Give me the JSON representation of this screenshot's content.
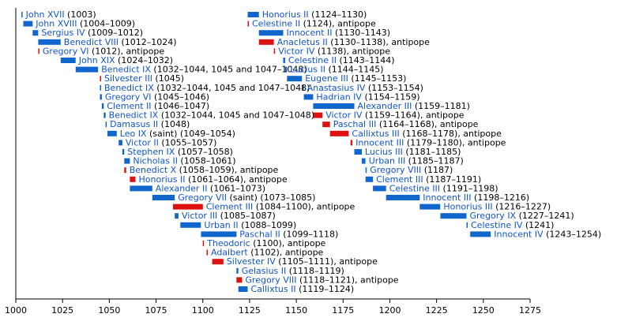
{
  "chart_data": {
    "type": "timeline",
    "x_axis": {
      "min": 1000,
      "max": 1275,
      "ticks": [
        1000,
        1025,
        1050,
        1075,
        1100,
        1125,
        1150,
        1175,
        1200,
        1225,
        1250,
        1275
      ]
    },
    "colors": {
      "pope": "#1166cc",
      "antipope": "#dd1111",
      "name_text": "#1155cc",
      "axis": "#000000"
    },
    "grid": false,
    "series": [
      {
        "name": "John XVII",
        "years_text": "(1003)",
        "start": 1003,
        "end": 1003.4,
        "kind": "pope"
      },
      {
        "name": "John XVIII",
        "years_text": "(1004–1009)",
        "start": 1004,
        "end": 1009,
        "kind": "pope"
      },
      {
        "name": "Sergius IV",
        "years_text": "(1009–1012)",
        "start": 1009,
        "end": 1012,
        "kind": "pope"
      },
      {
        "name": "Benedict VIII",
        "years_text": "(1012–1024)",
        "start": 1012,
        "end": 1024,
        "kind": "pope"
      },
      {
        "name": "Gregory VI",
        "years_text": "(1012), antipope",
        "start": 1012,
        "end": 1012.4,
        "kind": "antipope"
      },
      {
        "name": "John XIX",
        "years_text": "(1024–1032)",
        "start": 1024,
        "end": 1032,
        "kind": "pope"
      },
      {
        "name": "Benedict IX",
        "years_text": "(1032–1044, 1045 and 1047–1048)",
        "start": 1032,
        "end": 1044,
        "kind": "pope"
      },
      {
        "name": "Silvester III",
        "years_text": "(1045)",
        "start": 1045,
        "end": 1045.4,
        "kind": "antipope"
      },
      {
        "name": "Benedict IX",
        "years_text": "(1032–1044, 1045 and 1047–1048)",
        "start": 1045,
        "end": 1045.4,
        "kind": "pope"
      },
      {
        "name": "Gregory VI",
        "years_text": "(1045–1046)",
        "start": 1045,
        "end": 1046,
        "kind": "pope"
      },
      {
        "name": "Clement II",
        "years_text": "(1046–1047)",
        "start": 1046,
        "end": 1047,
        "kind": "pope"
      },
      {
        "name": "Benedict IX",
        "years_text": "(1032–1044, 1045 and 1047–1048)",
        "start": 1047,
        "end": 1048,
        "kind": "pope"
      },
      {
        "name": "Damasus II",
        "years_text": "(1048)",
        "start": 1048,
        "end": 1048.4,
        "kind": "pope"
      },
      {
        "name": "Leo IX",
        "years_text": "(saint) (1049–1054)",
        "start": 1049,
        "end": 1054,
        "kind": "pope"
      },
      {
        "name": "Victor II",
        "years_text": "(1055–1057)",
        "start": 1055,
        "end": 1057,
        "kind": "pope"
      },
      {
        "name": "Stephen IX",
        "years_text": "(1057–1058)",
        "start": 1057,
        "end": 1058,
        "kind": "pope"
      },
      {
        "name": "Nicholas II",
        "years_text": "(1058–1061)",
        "start": 1058,
        "end": 1061,
        "kind": "pope"
      },
      {
        "name": "Benedict X",
        "years_text": "(1058–1059), antipope",
        "start": 1058,
        "end": 1059,
        "kind": "antipope"
      },
      {
        "name": "Honorius II",
        "years_text": "(1061–1064), antipope",
        "start": 1061,
        "end": 1064,
        "kind": "antipope"
      },
      {
        "name": "Alexander II",
        "years_text": "(1061–1073)",
        "start": 1061,
        "end": 1073,
        "kind": "pope"
      },
      {
        "name": "Gregory VII",
        "years_text": "(saint) (1073–1085)",
        "start": 1073,
        "end": 1085,
        "kind": "pope"
      },
      {
        "name": "Clement III",
        "years_text": "(1084–1100), antipope",
        "start": 1084,
        "end": 1100,
        "kind": "antipope"
      },
      {
        "name": "Victor III",
        "years_text": "(1085–1087)",
        "start": 1085,
        "end": 1087,
        "kind": "pope"
      },
      {
        "name": "Urban II",
        "years_text": "(1088–1099)",
        "start": 1088,
        "end": 1099,
        "kind": "pope"
      },
      {
        "name": "Paschal II",
        "years_text": "(1099–1118)",
        "start": 1099,
        "end": 1118,
        "kind": "pope"
      },
      {
        "name": "Theodoric",
        "years_text": "(1100), antipope",
        "start": 1100,
        "end": 1100.4,
        "kind": "antipope"
      },
      {
        "name": "Adalbert",
        "years_text": "(1102), antipope",
        "start": 1102,
        "end": 1102.4,
        "kind": "antipope"
      },
      {
        "name": "Silvester IV",
        "years_text": "(1105–1111), antipope",
        "start": 1105,
        "end": 1111,
        "kind": "antipope"
      },
      {
        "name": "Gelasius II",
        "years_text": "(1118–1119)",
        "start": 1118,
        "end": 1119,
        "kind": "pope"
      },
      {
        "name": "Gregory VIII",
        "years_text": "(1118–1121), antipope",
        "start": 1118,
        "end": 1121,
        "kind": "antipope"
      },
      {
        "name": "Callixtus II",
        "years_text": "(1119–1124)",
        "start": 1119,
        "end": 1124,
        "kind": "pope"
      },
      {
        "name": "Honorius II",
        "years_text": "(1124–1130)",
        "start": 1124,
        "end": 1130,
        "kind": "pope"
      },
      {
        "name": "Celestine II",
        "years_text": "(1124), antipope",
        "start": 1124,
        "end": 1124.4,
        "kind": "antipope"
      },
      {
        "name": "Innocent II",
        "years_text": "(1130–1143)",
        "start": 1130,
        "end": 1143,
        "kind": "pope"
      },
      {
        "name": "Anacletus II",
        "years_text": "(1130–1138), antipope",
        "start": 1130,
        "end": 1138,
        "kind": "antipope"
      },
      {
        "name": "Victor IV",
        "years_text": "(1138), antipope",
        "start": 1138,
        "end": 1138.4,
        "kind": "antipope"
      },
      {
        "name": "Celestine II",
        "years_text": "(1143–1144)",
        "start": 1143,
        "end": 1144,
        "kind": "pope"
      },
      {
        "name": "Lucius II",
        "years_text": "(1144–1145)",
        "start": 1144,
        "end": 1145,
        "kind": "pope"
      },
      {
        "name": "Eugene III",
        "years_text": "(1145–1153)",
        "start": 1145,
        "end": 1153,
        "kind": "pope"
      },
      {
        "name": "Anastasius IV",
        "years_text": "(1153–1154)",
        "start": 1153,
        "end": 1154,
        "kind": "pope"
      },
      {
        "name": "Hadrian IV",
        "years_text": "(1154–1159)",
        "start": 1154,
        "end": 1159,
        "kind": "pope"
      },
      {
        "name": "Alexander III",
        "years_text": "(1159–1181)",
        "start": 1159,
        "end": 1181,
        "kind": "pope"
      },
      {
        "name": "Victor IV",
        "years_text": "(1159–1164), antipope",
        "start": 1159,
        "end": 1164,
        "kind": "antipope"
      },
      {
        "name": "Paschal III",
        "years_text": "(1164–1168), antipope",
        "start": 1164,
        "end": 1168,
        "kind": "antipope"
      },
      {
        "name": "Callixtus III",
        "years_text": "(1168–1178), antipope",
        "start": 1168,
        "end": 1178,
        "kind": "antipope"
      },
      {
        "name": "Innocent III",
        "years_text": "(1179–1180), antipope",
        "start": 1179,
        "end": 1180,
        "kind": "antipope"
      },
      {
        "name": "Lucius III",
        "years_text": "(1181–1185)",
        "start": 1181,
        "end": 1185,
        "kind": "pope"
      },
      {
        "name": "Urban III",
        "years_text": "(1185–1187)",
        "start": 1185,
        "end": 1187,
        "kind": "pope"
      },
      {
        "name": "Gregory VIII",
        "years_text": "(1187)",
        "start": 1187,
        "end": 1187.4,
        "kind": "pope"
      },
      {
        "name": "Clement III",
        "years_text": "(1187–1191)",
        "start": 1187,
        "end": 1191,
        "kind": "pope"
      },
      {
        "name": "Celestine III",
        "years_text": "(1191–1198)",
        "start": 1191,
        "end": 1198,
        "kind": "pope"
      },
      {
        "name": "Innocent III",
        "years_text": "(1198–1216)",
        "start": 1198,
        "end": 1216,
        "kind": "pope"
      },
      {
        "name": "Honorius III",
        "years_text": "(1216–1227)",
        "start": 1216,
        "end": 1227,
        "kind": "pope"
      },
      {
        "name": "Gregory IX",
        "years_text": "(1227–1241)",
        "start": 1227,
        "end": 1241,
        "kind": "pope"
      },
      {
        "name": "Celestine IV",
        "years_text": "(1241)",
        "start": 1241,
        "end": 1241.4,
        "kind": "pope"
      },
      {
        "name": "Innocent IV",
        "years_text": "(1243–1254)",
        "start": 1243,
        "end": 1254,
        "kind": "pope"
      }
    ]
  }
}
